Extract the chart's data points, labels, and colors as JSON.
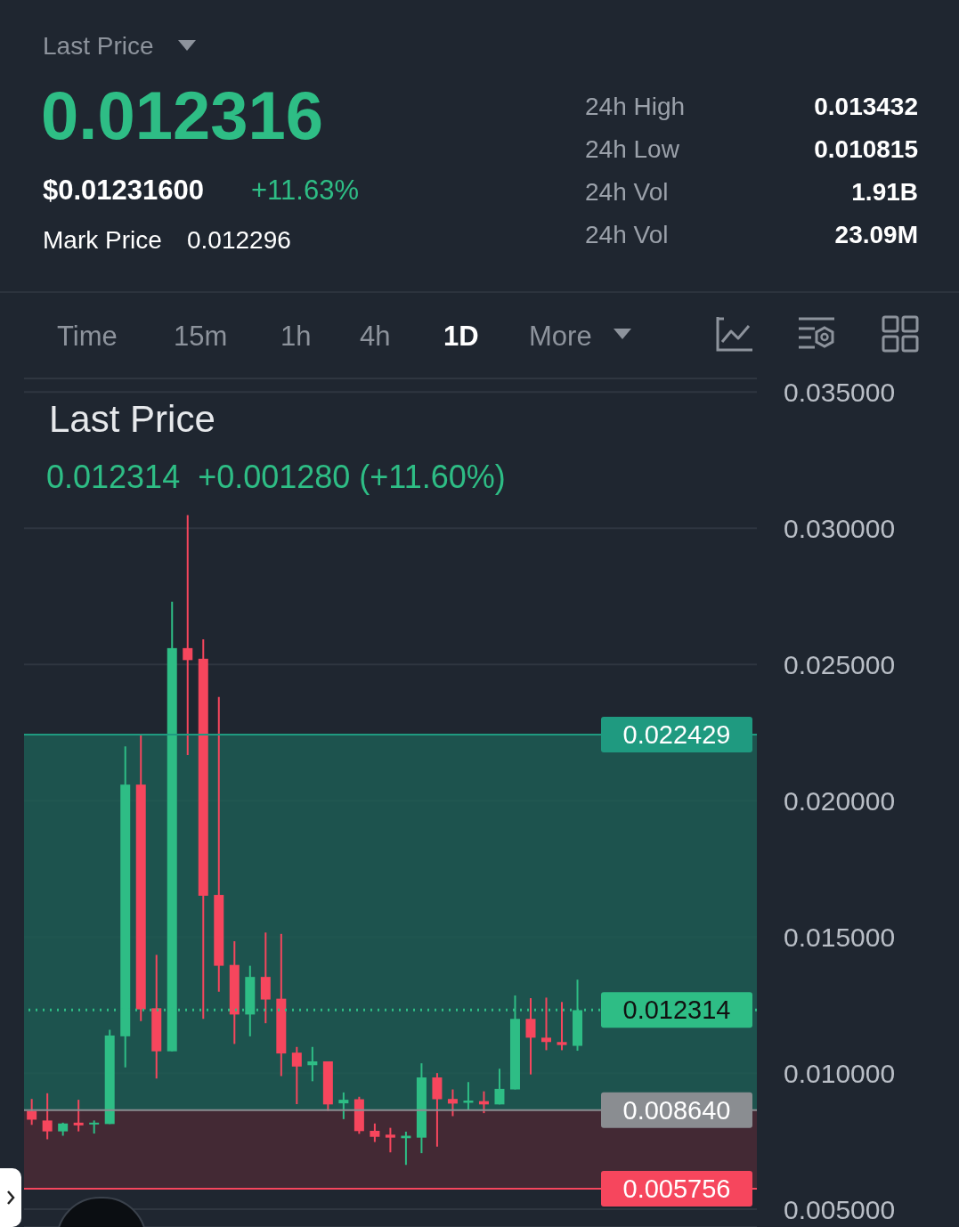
{
  "chart_data": {
    "type": "candlestick",
    "title": "Last Price",
    "subtitle": "0.012314  +0.001280 (+11.60%)",
    "annotations": [
      "Last Price",
      "0.012316",
      "$0.01231600",
      "+11.63%",
      "Mark Price",
      "0.012296",
      "24h High",
      "0.013432",
      "24h Low",
      "0.010815",
      "24h Vol",
      "1.91B",
      "24h Vol",
      "23.09M",
      "Time",
      "15m",
      "1h",
      "4h",
      "1D",
      "More"
    ],
    "categories": [
      null,
      null,
      null,
      null,
      null,
      null,
      null,
      null,
      null,
      null,
      null,
      null,
      null,
      null,
      null,
      null,
      null,
      null,
      null,
      null,
      null,
      null,
      null,
      null,
      null,
      null,
      null,
      null,
      null,
      null,
      null,
      null,
      null,
      null,
      null,
      null,
      null,
      null,
      null,
      null,
      null,
      null,
      null,
      null,
      null,
      null,
      null
    ],
    "ohlc": [
      [
        0.00861,
        0.00905,
        0.0081,
        0.00829
      ],
      [
        0.00826,
        0.00926,
        0.00757,
        0.00786
      ],
      [
        0.00786,
        0.00818,
        0.0077,
        0.00815
      ],
      [
        0.00818,
        0.00902,
        0.00786,
        0.00808
      ],
      [
        0.00812,
        0.00826,
        0.00778,
        0.00818
      ],
      [
        0.00813,
        0.01159,
        0.00813,
        0.01138
      ],
      [
        0.01135,
        0.02199,
        0.01021,
        0.02059
      ],
      [
        0.02059,
        0.02246,
        0.01191,
        0.01234
      ],
      [
        0.01238,
        0.01434,
        0.0098,
        0.0108
      ],
      [
        0.0108,
        0.0273,
        0.0108,
        0.0256
      ],
      [
        0.0256,
        0.03048,
        0.02167,
        0.02516
      ],
      [
        0.02521,
        0.02592,
        0.01199,
        0.01651
      ],
      [
        0.01654,
        0.02381,
        0.01299,
        0.01394
      ],
      [
        0.01397,
        0.01484,
        0.01107,
        0.01215
      ],
      [
        0.01215,
        0.01394,
        0.01135,
        0.01353
      ],
      [
        0.01353,
        0.01516,
        0.01183,
        0.0127
      ],
      [
        0.01273,
        0.01511,
        0.00989,
        0.01072
      ],
      [
        0.01075,
        0.01096,
        0.00886,
        0.01024
      ],
      [
        0.01029,
        0.01096,
        0.0097,
        0.01043
      ],
      [
        0.01043,
        0.01043,
        0.00861,
        0.00885
      ],
      [
        0.00889,
        0.00929,
        0.00831,
        0.00902
      ],
      [
        0.00904,
        0.00913,
        0.00777,
        0.00787
      ],
      [
        0.00788,
        0.00815,
        0.00747,
        0.00766
      ],
      [
        0.00774,
        0.00799,
        0.00709,
        0.00763
      ],
      [
        0.00761,
        0.00785,
        0.00663,
        0.0077
      ],
      [
        0.00763,
        0.01036,
        0.00706,
        0.00984
      ],
      [
        0.00984,
        0.01,
        0.0073,
        0.00904
      ],
      [
        0.00905,
        0.0094,
        0.00842,
        0.00888
      ],
      [
        0.00891,
        0.00967,
        0.00864,
        0.00899
      ],
      [
        0.00897,
        0.00933,
        0.00853,
        0.00885
      ],
      [
        0.00885,
        0.01016,
        0.00885,
        0.00942
      ],
      [
        0.0094,
        0.01285,
        0.0094,
        0.01199
      ],
      [
        0.01199,
        0.01275,
        0.00995,
        0.0113
      ],
      [
        0.0113,
        0.01277,
        0.01084,
        0.01114
      ],
      [
        0.01114,
        0.01261,
        0.01084,
        0.01103
      ],
      [
        0.011,
        0.01343,
        0.01082,
        0.01231
      ],
      null,
      null,
      null,
      null,
      null,
      null,
      null,
      null,
      null,
      null,
      null
    ],
    "colors": [
      "#f6465d",
      "#f6465d",
      "#2ebd85",
      "#f6465d",
      "#2ebd85",
      "#2ebd85",
      "#2ebd85",
      "#f6465d",
      "#f6465d",
      "#2ebd85",
      "#f6465d",
      "#f6465d",
      "#f6465d",
      "#f6465d",
      "#2ebd85",
      "#f6465d",
      "#f6465d",
      "#f6465d",
      "#2ebd85",
      "#f6465d",
      "#2ebd85",
      "#f6465d",
      "#f6465d",
      "#f6465d",
      "#2ebd85",
      "#2ebd85",
      "#f6465d",
      "#f6465d",
      "#2ebd85",
      "#f6465d",
      "#2ebd85",
      "#2ebd85",
      "#f6465d",
      "#f6465d",
      "#f6465d",
      "#2ebd85",
      null,
      null,
      null,
      null,
      null,
      null,
      null,
      null,
      null,
      null,
      null
    ],
    "ylim": [
      0.00435,
      0.0355
    ],
    "yticks": [
      {
        "value": 0.035,
        "label": "0.035000"
      },
      {
        "value": 0.03,
        "label": "0.030000"
      },
      {
        "value": 0.025,
        "label": "0.025000"
      },
      {
        "value": 0.02,
        "label": "0.020000"
      },
      {
        "value": 0.015,
        "label": "0.015000"
      },
      {
        "value": 0.01,
        "label": "0.010000"
      },
      {
        "value": 0.005,
        "label": "0.005000"
      }
    ],
    "grid": "y",
    "bands": [
      {
        "axis": "y",
        "from": 0.00864,
        "to": 0.022429,
        "color": "#1d5c53"
      },
      {
        "axis": "y",
        "from": 0.005756,
        "to": 0.00864,
        "color": "#4a2a35"
      }
    ],
    "ref_lines": [
      {
        "axis": "y",
        "value": 0.012314,
        "label": "0.012314",
        "color": "#2ebd85",
        "line_style": "dotted"
      },
      {
        "axis": "y",
        "value": 0.022429,
        "label": "0.022429",
        "color": "#1f9a80",
        "line_style": "solid"
      },
      {
        "axis": "y",
        "value": 0.00864,
        "label": "0.008640",
        "color": "#8a8d91",
        "line_style": "solid"
      },
      {
        "axis": "y",
        "value": 0.005756,
        "label": "0.005756",
        "color": "#f6465d",
        "line_style": "solid"
      }
    ]
  }
}
